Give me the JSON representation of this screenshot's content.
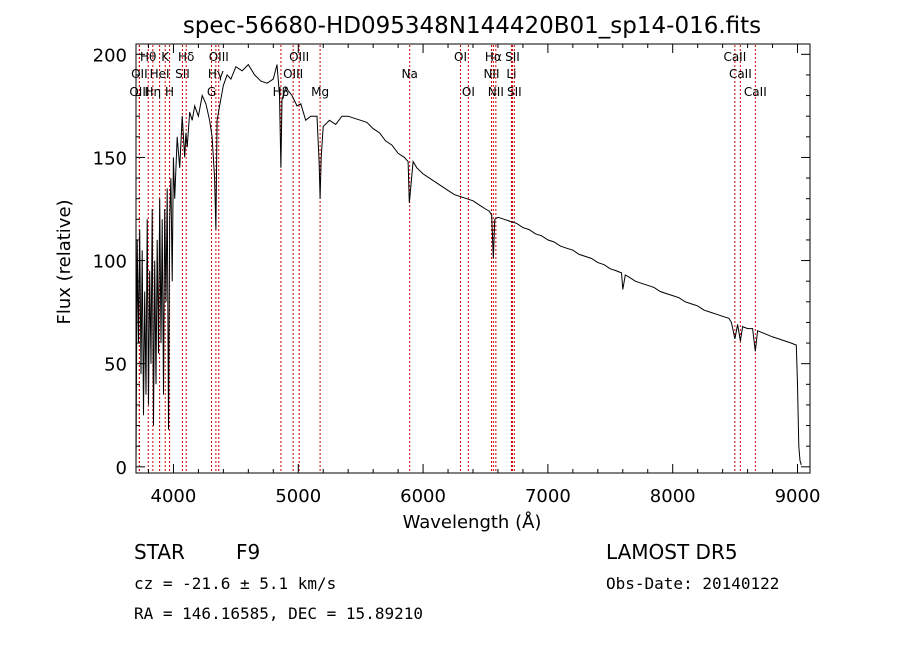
{
  "chart_data": {
    "type": "line",
    "title": "spec-56680-HD095348N144420B01_sp14-016.fits",
    "xlabel": "Wavelength (Å)",
    "ylabel": "Flux (relative)",
    "xlim": [
      3700,
      9100
    ],
    "ylim": [
      -3,
      205
    ],
    "xticks": [
      4000,
      5000,
      6000,
      7000,
      8000,
      9000
    ],
    "yticks": [
      0,
      50,
      100,
      150,
      200
    ],
    "grid": false,
    "line_color": "#000000",
    "marker_color": "#cc0000",
    "series": [
      {
        "x": [
          3700,
          3710,
          3720,
          3730,
          3740,
          3750,
          3760,
          3770,
          3780,
          3790,
          3800,
          3810,
          3820,
          3830,
          3840,
          3850,
          3860,
          3870,
          3880,
          3890,
          3900,
          3910,
          3920,
          3930,
          3940,
          3950,
          3960,
          3970,
          3980,
          3990,
          4000,
          4010,
          4030,
          4050,
          4070,
          4090,
          4100,
          4110,
          4130,
          4150,
          4170,
          4200,
          4230,
          4260,
          4290,
          4310,
          4330,
          4340,
          4350,
          4370,
          4400,
          4430,
          4460,
          4500,
          4550,
          4600,
          4650,
          4700,
          4750,
          4800,
          4830,
          4850,
          4861,
          4870,
          4900,
          4950,
          4990,
          5020,
          5060,
          5100,
          5150,
          5167,
          5175,
          5184,
          5200,
          5250,
          5300,
          5350,
          5400,
          5450,
          5500,
          5550,
          5600,
          5650,
          5700,
          5750,
          5800,
          5850,
          5880,
          5890,
          5896,
          5920,
          5950,
          6000,
          6050,
          6100,
          6150,
          6200,
          6250,
          6300,
          6350,
          6400,
          6450,
          6500,
          6530,
          6550,
          6563,
          6575,
          6600,
          6650,
          6700,
          6750,
          6800,
          6850,
          6900,
          6950,
          7000,
          7050,
          7100,
          7150,
          7200,
          7250,
          7300,
          7350,
          7400,
          7450,
          7500,
          7550,
          7590,
          7600,
          7620,
          7650,
          7700,
          7750,
          7800,
          7850,
          7900,
          7950,
          8000,
          8050,
          8100,
          8150,
          8200,
          8250,
          8300,
          8350,
          8400,
          8450,
          8470,
          8498,
          8520,
          8542,
          8560,
          8600,
          8640,
          8662,
          8680,
          8720,
          8760,
          8800,
          8850,
          8900,
          8950,
          8990,
          9000,
          9010,
          9020,
          9030
        ],
        "y": [
          0,
          110,
          60,
          115,
          45,
          105,
          25,
          85,
          35,
          120,
          30,
          95,
          50,
          125,
          20,
          100,
          40,
          110,
          55,
          130,
          60,
          120,
          35,
          125,
          80,
          135,
          18,
          120,
          140,
          90,
          150,
          130,
          160,
          145,
          170,
          150,
          162,
          155,
          172,
          168,
          175,
          170,
          180,
          176,
          168,
          160,
          140,
          115,
          168,
          175,
          185,
          190,
          188,
          194,
          192,
          195,
          190,
          187,
          186,
          188,
          195,
          180,
          145,
          178,
          184,
          180,
          175,
          176,
          168,
          170,
          170,
          148,
          130,
          150,
          165,
          168,
          166,
          170,
          170,
          169,
          168,
          167,
          164,
          162,
          158,
          156,
          152,
          150,
          148,
          128,
          132,
          148,
          145,
          142,
          140,
          138,
          136,
          134,
          132,
          131,
          130,
          129,
          127,
          125,
          124,
          122,
          101,
          120,
          121,
          120,
          119,
          118,
          116,
          115,
          113,
          112,
          110,
          109,
          107,
          106,
          105,
          103,
          102,
          101,
          99,
          98,
          96,
          95,
          94,
          86,
          93,
          92,
          90,
          89,
          88,
          87,
          85,
          84,
          83,
          82,
          80,
          79,
          78,
          76,
          75,
          74,
          73,
          72,
          70,
          62,
          69,
          61,
          68,
          67,
          67,
          56,
          66,
          65,
          64,
          63,
          62,
          61,
          60,
          59,
          40,
          10,
          3,
          1
        ]
      }
    ],
    "annotations": [
      {
        "label": "Hθ",
        "x": 3798,
        "row": 1
      },
      {
        "label": "OII",
        "x": 3727,
        "row": 2
      },
      {
        "label": "OIII",
        "x": 3727,
        "row": 3
      },
      {
        "label": "Hη",
        "x": 3835,
        "row": 3
      },
      {
        "label": "K",
        "x": 3934,
        "row": 1
      },
      {
        "label": "HeI",
        "x": 3889,
        "row": 2
      },
      {
        "label": "H",
        "x": 3969,
        "row": 3
      },
      {
        "label": "Hδ",
        "x": 4102,
        "row": 1
      },
      {
        "label": "SII",
        "x": 4072,
        "row": 2
      },
      {
        "label": "OIII",
        "x": 4363,
        "row": 1
      },
      {
        "label": "Hγ",
        "x": 4340,
        "row": 2
      },
      {
        "label": "G",
        "x": 4305,
        "row": 3
      },
      {
        "label": "OIII",
        "x": 5007,
        "row": 1
      },
      {
        "label": "OIII",
        "x": 4959,
        "row": 2
      },
      {
        "label": "Hβ",
        "x": 4861,
        "row": 3
      },
      {
        "label": "Mg",
        "x": 5175,
        "row": 3
      },
      {
        "label": "Na",
        "x": 5893,
        "row": 2
      },
      {
        "label": "OI",
        "x": 6300,
        "row": 1
      },
      {
        "label": "OI",
        "x": 6363,
        "row": 3
      },
      {
        "label": "Hα",
        "x": 6563,
        "row": 1
      },
      {
        "label": "NII",
        "x": 6548,
        "row": 2
      },
      {
        "label": "NII",
        "x": 6583,
        "row": 3
      },
      {
        "label": "SII",
        "x": 6716,
        "row": 1
      },
      {
        "label": "Li",
        "x": 6708,
        "row": 2
      },
      {
        "label": "SII",
        "x": 6731,
        "row": 3
      },
      {
        "label": "CaII",
        "x": 8498,
        "row": 1
      },
      {
        "label": "CaII",
        "x": 8542,
        "row": 2
      },
      {
        "label": "CaII",
        "x": 8662,
        "row": 3
      }
    ]
  },
  "info": {
    "object_class": "STAR",
    "subclass": "F9",
    "survey": "LAMOST DR5",
    "redshift": "cz = -21.6 ± 5.1 km/s",
    "obs_date": "Obs-Date: 20140122",
    "coords": "RA = 146.16585, DEC =  15.89210"
  }
}
